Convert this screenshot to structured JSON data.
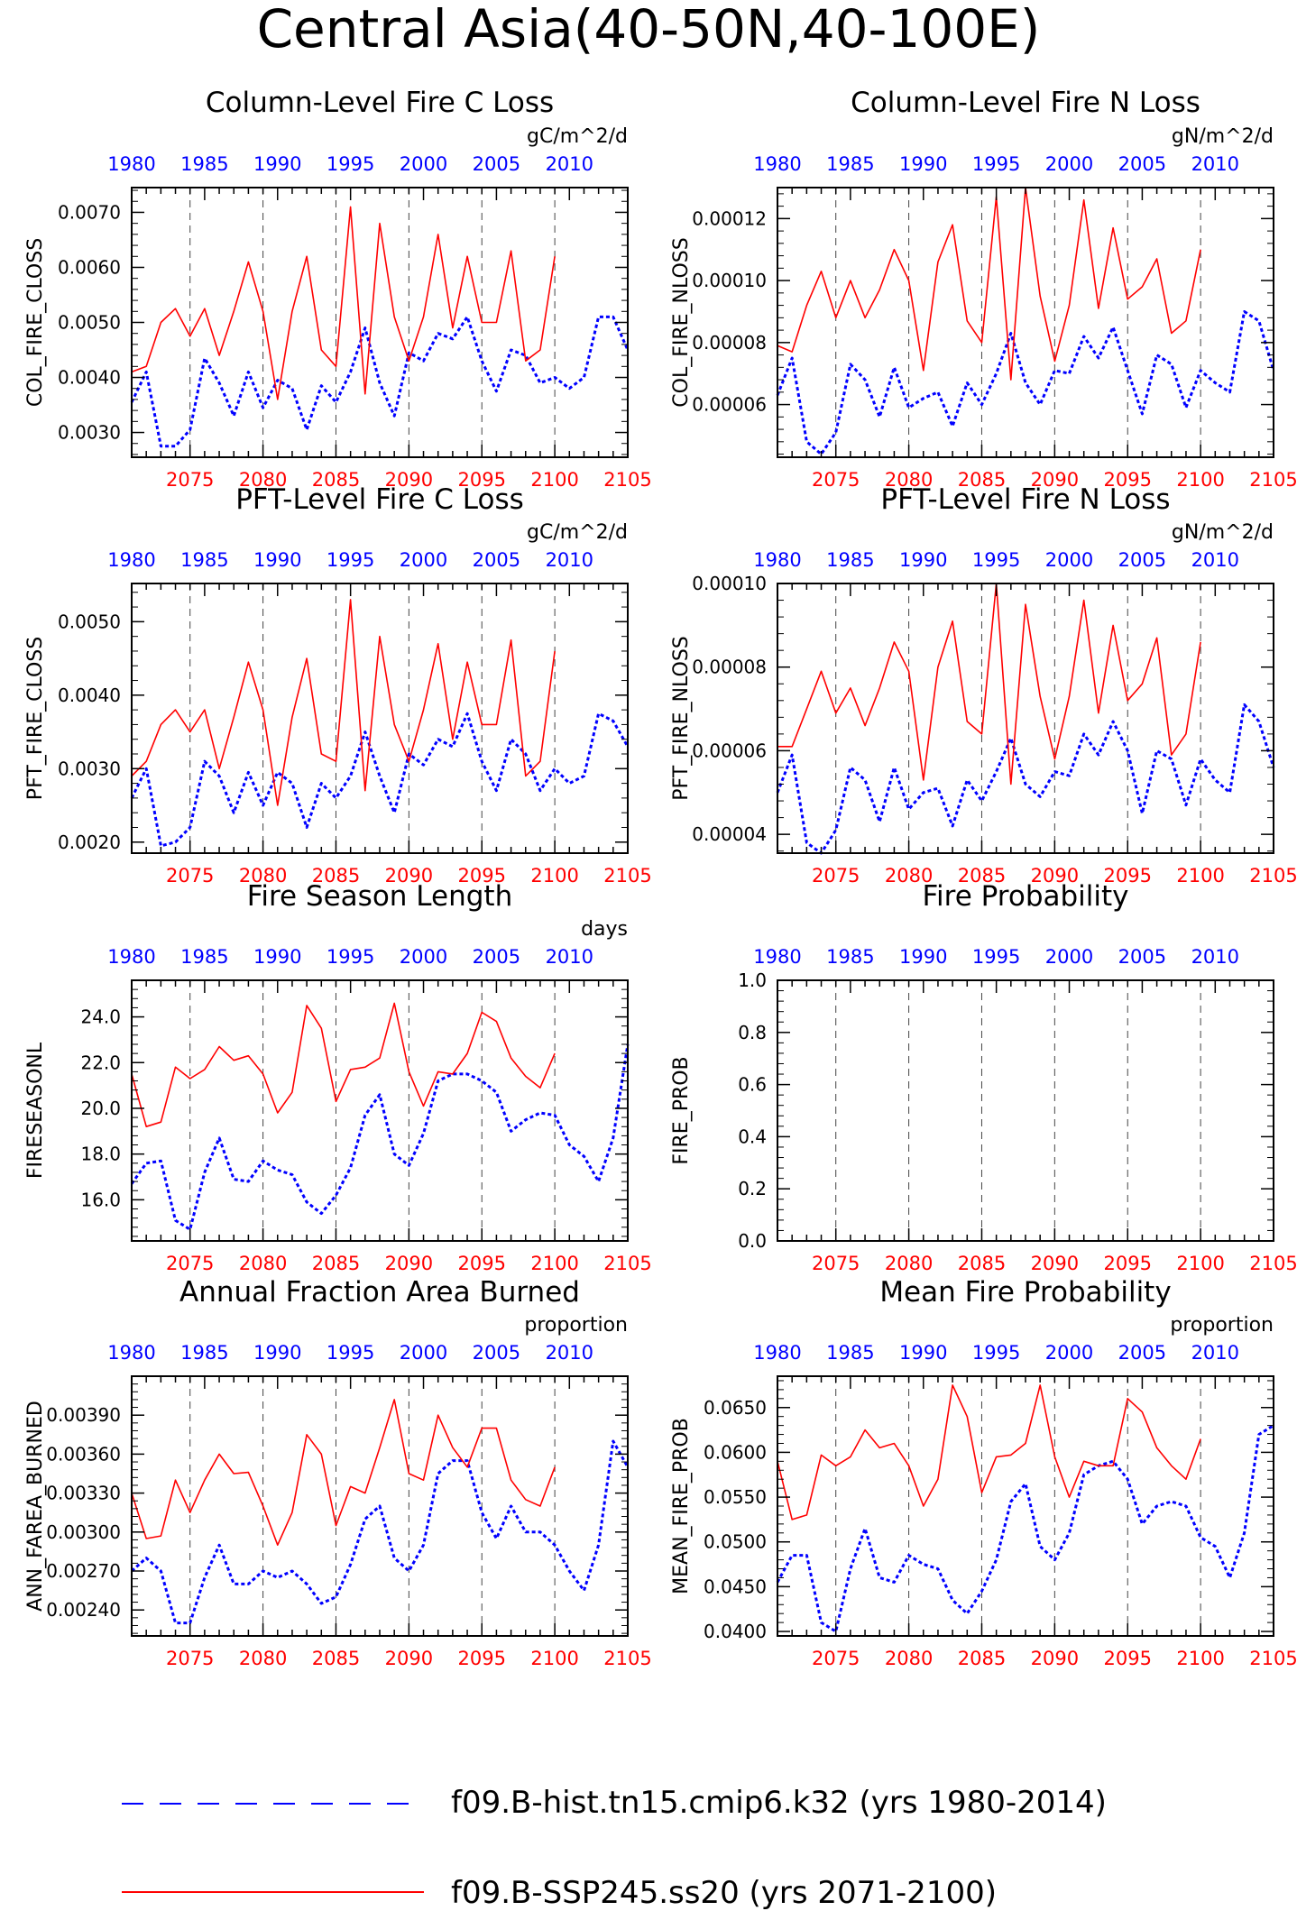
{
  "title": "Central Asia(40-50N,40-100E)",
  "colors": {
    "hist": "#0000ff",
    "ssp": "#ff0000",
    "axis": "#000000",
    "grid": "#444444"
  },
  "top_axis_ticks": [
    "1980",
    "1985",
    "1990",
    "1995",
    "2000",
    "2005",
    "2010"
  ],
  "bottom_axis_ticks": [
    "2075",
    "2080",
    "2085",
    "2090",
    "2095",
    "2100",
    "2105"
  ],
  "legend": [
    {
      "label": "f09.B-hist.tn15.cmip6.k32 (yrs 1980-2014)",
      "style": "dashed",
      "color": "#0000ff"
    },
    {
      "label": "f09.B-SSP245.ss20 (yrs 2071-2100)",
      "style": "solid",
      "color": "#ff0000"
    }
  ],
  "chart_data": [
    {
      "type": "line",
      "title": "Column-Level Fire C Loss",
      "units": "gC/m^2/d",
      "ylabel": "COL_FIRE_CLOSS",
      "ylim": [
        0.00255,
        0.00745
      ],
      "yticks": [
        "0.0030",
        "0.0040",
        "0.0050",
        "0.0060",
        "0.0070"
      ],
      "ytick_values": [
        0.003,
        0.004,
        0.005,
        0.006,
        0.007
      ],
      "xlim_bottom": [
        2071,
        2105
      ],
      "xlim_top": [
        1980,
        2014
      ],
      "series": [
        {
          "name": "f09.B-hist.tn15.cmip6.k32 (yrs 1980-2014)",
          "x_start": 1980,
          "values": [
            0.00355,
            0.0041,
            0.00275,
            0.00275,
            0.00305,
            0.00435,
            0.0039,
            0.0033,
            0.0041,
            0.00345,
            0.00395,
            0.0038,
            0.00305,
            0.00385,
            0.00355,
            0.0041,
            0.0049,
            0.0039,
            0.0033,
            0.00445,
            0.0043,
            0.0048,
            0.0047,
            0.0051,
            0.0043,
            0.00375,
            0.0045,
            0.0044,
            0.0039,
            0.004,
            0.0038,
            0.004,
            0.0051,
            0.0051,
            0.0045
          ]
        },
        {
          "name": "f09.B-SSP245.ss20 (yrs 2071-2100)",
          "x_start": 2071,
          "values": [
            0.0041,
            0.0042,
            0.005,
            0.00525,
            0.00475,
            0.00525,
            0.0044,
            0.0052,
            0.0061,
            0.0052,
            0.0036,
            0.0052,
            0.0062,
            0.0045,
            0.0042,
            0.0071,
            0.0037,
            0.0068,
            0.0051,
            0.0043,
            0.0051,
            0.0066,
            0.0049,
            0.0062,
            0.005,
            0.005,
            0.0063,
            0.0043,
            0.0045,
            0.0062
          ]
        }
      ]
    },
    {
      "type": "line",
      "title": "Column-Level Fire N Loss",
      "units": "gN/m^2/d",
      "ylabel": "COL_FIRE_NLOSS",
      "ylim": [
        4.3e-05,
        0.00013
      ],
      "yticks": [
        "0.00006",
        "0.00008",
        "0.00010",
        "0.00012"
      ],
      "ytick_values": [
        6e-05,
        8e-05,
        0.0001,
        0.00012
      ],
      "xlim_bottom": [
        2071,
        2105
      ],
      "xlim_top": [
        1980,
        2014
      ],
      "series": [
        {
          "name": "f09.B-hist.tn15.cmip6.k32 (yrs 1980-2014)",
          "x_start": 1980,
          "values": [
            6.3e-05,
            7.5e-05,
            4.8e-05,
            4.4e-05,
            5.1e-05,
            7.3e-05,
            6.8e-05,
            5.6e-05,
            7.2e-05,
            5.9e-05,
            6.2e-05,
            6.4e-05,
            5.3e-05,
            6.7e-05,
            6e-05,
            7e-05,
            8.3e-05,
            6.7e-05,
            6e-05,
            7.1e-05,
            7e-05,
            8.2e-05,
            7.5e-05,
            8.5e-05,
            7.1e-05,
            5.7e-05,
            7.6e-05,
            7.3e-05,
            5.9e-05,
            7.1e-05,
            6.7e-05,
            6.4e-05,
            9e-05,
            8.7e-05,
            7.1e-05
          ]
        },
        {
          "name": "f09.B-SSP245.ss20 (yrs 2071-2100)",
          "x_start": 2071,
          "values": [
            7.9e-05,
            7.7e-05,
            9.2e-05,
            0.000103,
            8.8e-05,
            0.0001,
            8.8e-05,
            9.7e-05,
            0.00011,
            0.0001,
            7.1e-05,
            0.000106,
            0.000118,
            8.7e-05,
            8e-05,
            0.000127,
            6.8e-05,
            0.00013,
            9.5e-05,
            7.4e-05,
            9.2e-05,
            0.000126,
            9.1e-05,
            0.000117,
            9.4e-05,
            9.8e-05,
            0.000107,
            8.3e-05,
            8.7e-05,
            0.00011
          ]
        }
      ]
    },
    {
      "type": "line",
      "title": "PFT-Level Fire C Loss",
      "units": "gC/m^2/d",
      "ylabel": "PFT_FIRE_CLOSS",
      "ylim": [
        0.00185,
        0.00552
      ],
      "yticks": [
        "0.0020",
        "0.0030",
        "0.0040",
        "0.0050"
      ],
      "ytick_values": [
        0.002,
        0.003,
        0.004,
        0.005
      ],
      "xlim_bottom": [
        2071,
        2105
      ],
      "xlim_top": [
        1980,
        2014
      ],
      "series": [
        {
          "name": "f09.B-hist.tn15.cmip6.k32 (yrs 1980-2014)",
          "x_start": 1980,
          "values": [
            0.0026,
            0.003,
            0.00195,
            0.002,
            0.0022,
            0.0031,
            0.0029,
            0.0024,
            0.00295,
            0.0025,
            0.00295,
            0.0028,
            0.0022,
            0.0028,
            0.0026,
            0.0029,
            0.0035,
            0.0029,
            0.0024,
            0.0032,
            0.00305,
            0.0034,
            0.0033,
            0.00375,
            0.0031,
            0.0027,
            0.0034,
            0.0032,
            0.0027,
            0.003,
            0.0028,
            0.0029,
            0.00375,
            0.00365,
            0.0033
          ]
        },
        {
          "name": "f09.B-SSP245.ss20 (yrs 2071-2100)",
          "x_start": 2071,
          "values": [
            0.0029,
            0.0031,
            0.0036,
            0.0038,
            0.0035,
            0.0038,
            0.003,
            0.0037,
            0.00445,
            0.0038,
            0.0025,
            0.0037,
            0.0045,
            0.0032,
            0.0031,
            0.0053,
            0.0027,
            0.0048,
            0.0036,
            0.0031,
            0.0038,
            0.0047,
            0.0034,
            0.00445,
            0.0036,
            0.0036,
            0.00475,
            0.0029,
            0.0031,
            0.0046
          ]
        }
      ]
    },
    {
      "type": "line",
      "title": "PFT-Level Fire N Loss",
      "units": "gN/m^2/d",
      "ylabel": "PFT_FIRE_NLOSS",
      "ylim": [
        3.55e-05,
        0.0001
      ],
      "yticks": [
        "0.00004",
        "0.00006",
        "0.00008",
        "0.00010"
      ],
      "ytick_values": [
        4e-05,
        6e-05,
        8e-05,
        0.0001
      ],
      "xlim_bottom": [
        2071,
        2105
      ],
      "xlim_top": [
        1980,
        2014
      ],
      "series": [
        {
          "name": "f09.B-hist.tn15.cmip6.k32 (yrs 1980-2014)",
          "x_start": 1980,
          "values": [
            5e-05,
            5.9e-05,
            3.8e-05,
            3.55e-05,
            4.1e-05,
            5.6e-05,
            5.3e-05,
            4.3e-05,
            5.6e-05,
            4.6e-05,
            5e-05,
            5.1e-05,
            4.2e-05,
            5.3e-05,
            4.8e-05,
            5.5e-05,
            6.3e-05,
            5.2e-05,
            4.9e-05,
            5.5e-05,
            5.4e-05,
            6.4e-05,
            5.9e-05,
            6.7e-05,
            6e-05,
            4.5e-05,
            6e-05,
            5.8e-05,
            4.7e-05,
            5.8e-05,
            5.3e-05,
            5e-05,
            7.1e-05,
            6.7e-05,
            5.6e-05
          ]
        },
        {
          "name": "f09.B-SSP245.ss20 (yrs 2071-2100)",
          "x_start": 2071,
          "values": [
            6.1e-05,
            6.1e-05,
            7e-05,
            7.9e-05,
            6.9e-05,
            7.5e-05,
            6.6e-05,
            7.5e-05,
            8.6e-05,
            7.9e-05,
            5.3e-05,
            8e-05,
            9.1e-05,
            6.7e-05,
            6.4e-05,
            0.0001,
            5.2e-05,
            9.5e-05,
            7.3e-05,
            5.8e-05,
            7.3e-05,
            9.6e-05,
            6.9e-05,
            9e-05,
            7.2e-05,
            7.6e-05,
            8.7e-05,
            5.9e-05,
            6.4e-05,
            8.6e-05
          ]
        }
      ]
    },
    {
      "type": "line",
      "title": "Fire Season Length",
      "units": "days",
      "ylabel": "FIRESEASONL",
      "ylim": [
        14.2,
        25.6
      ],
      "yticks": [
        "16.0",
        "18.0",
        "20.0",
        "22.0",
        "24.0"
      ],
      "ytick_values": [
        16,
        18,
        20,
        22,
        24
      ],
      "xlim_bottom": [
        2071,
        2105
      ],
      "xlim_top": [
        1980,
        2014
      ],
      "series": [
        {
          "name": "f09.B-hist.tn15.cmip6.k32 (yrs 1980-2014)",
          "x_start": 1980,
          "values": [
            16.7,
            17.6,
            17.7,
            15.1,
            14.7,
            17.2,
            18.7,
            16.9,
            16.8,
            17.7,
            17.3,
            17.1,
            15.9,
            15.4,
            16.2,
            17.4,
            19.7,
            20.6,
            18.0,
            17.5,
            18.9,
            21.2,
            21.5,
            21.5,
            21.2,
            20.7,
            19.0,
            19.5,
            19.8,
            19.7,
            18.4,
            17.9,
            16.8,
            18.7,
            22.8
          ]
        },
        {
          "name": "f09.B-SSP245.ss20 (yrs 2071-2100)",
          "x_start": 2071,
          "values": [
            21.5,
            19.2,
            19.4,
            21.8,
            21.3,
            21.7,
            22.7,
            22.1,
            22.3,
            21.5,
            19.8,
            20.7,
            24.5,
            23.5,
            20.3,
            21.7,
            21.8,
            22.2,
            24.6,
            21.6,
            20.1,
            21.6,
            21.5,
            22.4,
            24.2,
            23.8,
            22.2,
            21.4,
            20.9,
            22.4
          ]
        }
      ]
    },
    {
      "type": "line",
      "title": "Fire Probability",
      "units": "",
      "ylabel": "FIRE_PROB",
      "ylim": [
        0.0,
        1.0
      ],
      "yticks": [
        "0.0",
        "0.2",
        "0.4",
        "0.6",
        "0.8",
        "1.0"
      ],
      "ytick_values": [
        0.0,
        0.2,
        0.4,
        0.6,
        0.8,
        1.0
      ],
      "xlim_bottom": [
        2071,
        2105
      ],
      "xlim_top": [
        1980,
        2014
      ],
      "series": []
    },
    {
      "type": "line",
      "title": "Annual Fraction Area Burned",
      "units": "proportion",
      "ylabel": "ANN_FAREA_BURNED",
      "ylim": [
        0.0022,
        0.0042
      ],
      "yticks": [
        "0.00240",
        "0.00270",
        "0.00300",
        "0.00330",
        "0.00360",
        "0.00390"
      ],
      "ytick_values": [
        0.0024,
        0.0027,
        0.003,
        0.0033,
        0.0036,
        0.0039
      ],
      "xlim_bottom": [
        2071,
        2105
      ],
      "xlim_top": [
        1980,
        2014
      ],
      "series": [
        {
          "name": "f09.B-hist.tn15.cmip6.k32 (yrs 1980-2014)",
          "x_start": 1980,
          "values": [
            0.0027,
            0.0028,
            0.0027,
            0.0023,
            0.0023,
            0.00265,
            0.0029,
            0.0026,
            0.0026,
            0.0027,
            0.00265,
            0.0027,
            0.0026,
            0.00245,
            0.0025,
            0.00275,
            0.0031,
            0.0032,
            0.0028,
            0.0027,
            0.0029,
            0.00345,
            0.00355,
            0.00355,
            0.00315,
            0.00295,
            0.0032,
            0.003,
            0.003,
            0.0029,
            0.0027,
            0.00255,
            0.0029,
            0.0037,
            0.0035
          ]
        },
        {
          "name": "f09.B-SSP245.ss20 (yrs 2071-2100)",
          "x_start": 2071,
          "values": [
            0.0033,
            0.00295,
            0.00297,
            0.0034,
            0.00315,
            0.0034,
            0.0036,
            0.00345,
            0.00346,
            0.0032,
            0.0029,
            0.00315,
            0.00375,
            0.0036,
            0.00305,
            0.00335,
            0.0033,
            0.00365,
            0.00402,
            0.00345,
            0.0034,
            0.0039,
            0.00365,
            0.0035,
            0.0038,
            0.0038,
            0.0034,
            0.00325,
            0.0032,
            0.0035
          ]
        }
      ]
    },
    {
      "type": "line",
      "title": "Mean Fire Probability",
      "units": "proportion",
      "ylabel": "MEAN_FIRE_PROB",
      "ylim": [
        0.0395,
        0.0685
      ],
      "yticks": [
        "0.0400",
        "0.0450",
        "0.0500",
        "0.0550",
        "0.0600",
        "0.0650"
      ],
      "ytick_values": [
        0.04,
        0.045,
        0.05,
        0.055,
        0.06,
        0.065
      ],
      "xlim_bottom": [
        2071,
        2105
      ],
      "xlim_top": [
        1980,
        2014
      ],
      "series": [
        {
          "name": "f09.B-hist.tn15.cmip6.k32 (yrs 1980-2014)",
          "x_start": 1980,
          "values": [
            0.0455,
            0.0485,
            0.0485,
            0.041,
            0.04,
            0.047,
            0.0515,
            0.046,
            0.0455,
            0.0485,
            0.0475,
            0.047,
            0.0435,
            0.042,
            0.0445,
            0.048,
            0.0545,
            0.0565,
            0.0495,
            0.048,
            0.051,
            0.0575,
            0.0585,
            0.059,
            0.057,
            0.052,
            0.054,
            0.0545,
            0.054,
            0.0505,
            0.0495,
            0.046,
            0.051,
            0.062,
            0.063
          ]
        },
        {
          "name": "f09.B-SSP245.ss20 (yrs 2071-2100)",
          "x_start": 2071,
          "values": [
            0.059,
            0.0525,
            0.053,
            0.0597,
            0.0585,
            0.0595,
            0.0625,
            0.0605,
            0.061,
            0.0585,
            0.054,
            0.057,
            0.0675,
            0.064,
            0.0555,
            0.0595,
            0.0597,
            0.061,
            0.0675,
            0.0595,
            0.055,
            0.059,
            0.0585,
            0.0585,
            0.066,
            0.0645,
            0.0605,
            0.0585,
            0.057,
            0.0615
          ]
        }
      ]
    }
  ]
}
